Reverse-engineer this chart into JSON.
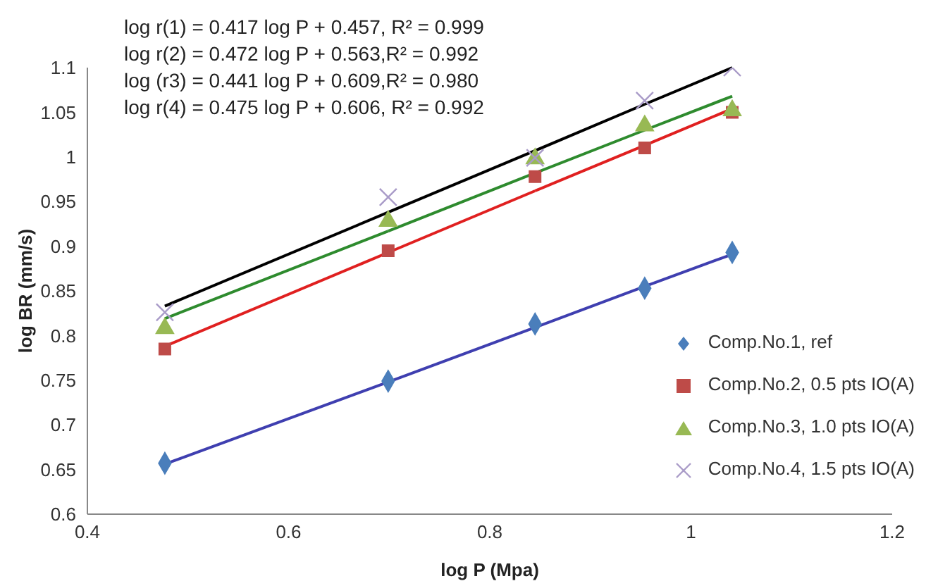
{
  "chart_data": {
    "type": "scatter",
    "xlabel": "log P (Mpa)",
    "ylabel": "log BR (mm/s)",
    "annotations": [
      "log r(1) = 0.417 log P + 0.457, R² = 0.999",
      "log r(2) = 0.472 log P + 0.563,R² = 0.992",
      "log (r3) = 0.441 log P + 0.609,R² = 0.980",
      "log r(4) = 0.475 log P + 0.606, R² = 0.992"
    ],
    "x": [
      0.477,
      0.699,
      0.845,
      0.954,
      1.041
    ],
    "series": [
      {
        "name": "Comp.No.1, ref",
        "color": "#4a7ebb",
        "marker": "diamond",
        "values": [
          0.657,
          0.749,
          0.813,
          0.853,
          0.893
        ]
      },
      {
        "name": "Comp.No.2, 0.5 pts IO(A)",
        "color": "#be4b48",
        "marker": "square",
        "values": [
          0.785,
          0.895,
          0.978,
          1.01,
          1.05
        ]
      },
      {
        "name": "Comp.No.3, 1.0 pts IO(A)",
        "color": "#98b954",
        "marker": "triangle",
        "values": [
          0.808,
          0.928,
          0.998,
          1.035,
          1.052
        ]
      },
      {
        "name": "Comp.No.4, 1.5 pts IO(A)",
        "color": "#a99bc8",
        "marker": "cross",
        "values": [
          0.826,
          0.955,
          0.999,
          1.063,
          1.1
        ]
      },
      {
        "type": "line",
        "color": "#3f3fb0",
        "values": [
          0.656,
          0.748,
          0.809,
          0.855,
          0.891
        ]
      },
      {
        "type": "line",
        "color": "#e02020",
        "values": [
          0.788,
          0.893,
          0.962,
          1.013,
          1.054
        ]
      },
      {
        "type": "line",
        "color": "#2e8b2e",
        "values": [
          0.819,
          0.917,
          0.982,
          1.03,
          1.068
        ]
      },
      {
        "type": "line",
        "color": "#000000",
        "values": [
          0.833,
          0.938,
          1.007,
          1.059,
          1.1
        ]
      }
    ],
    "xlim": [
      0.4,
      1.2
    ],
    "xticks": [
      0.4,
      0.6,
      0.8,
      1,
      1.2
    ],
    "ylim": [
      0.6,
      1.1
    ],
    "yticks": [
      0.6,
      0.65,
      0.7,
      0.75,
      0.8,
      0.85,
      0.9,
      0.95,
      1,
      1.05,
      1.1
    ],
    "legend": "right",
    "grid": false
  }
}
